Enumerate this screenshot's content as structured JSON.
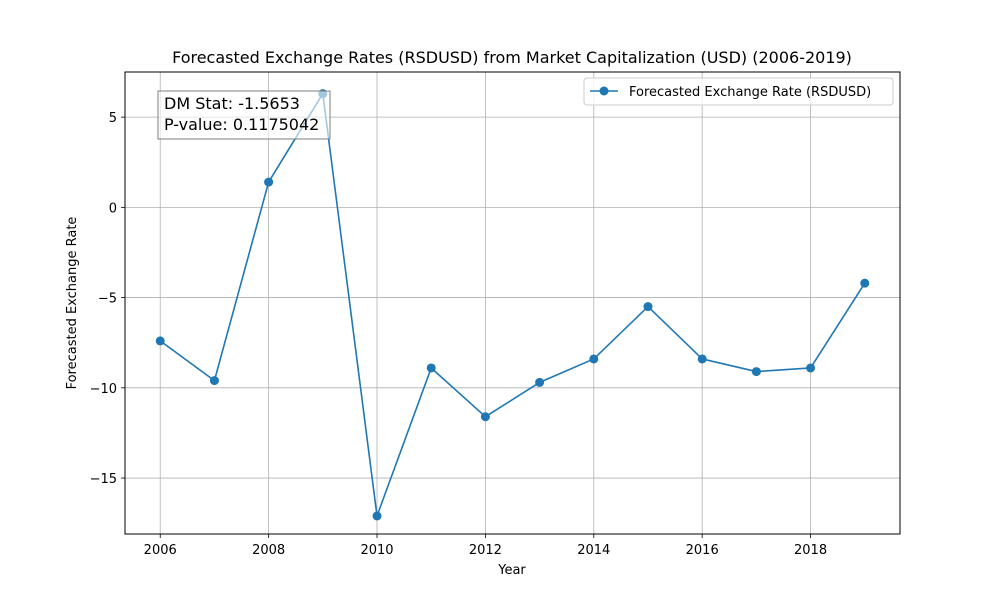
{
  "chart_data": {
    "type": "line",
    "title": "Forecasted Exchange Rates (RSDUSD) from Market Capitalization (USD) (2006-2019)",
    "xlabel": "Year",
    "ylabel": "Forecasted Exchange Rate",
    "xlim": [
      2005.35,
      2019.65
    ],
    "ylim": [
      -18.1,
      7.5
    ],
    "xticks": [
      2006,
      2008,
      2010,
      2012,
      2014,
      2016,
      2018
    ],
    "yticks": [
      -15,
      -10,
      -5,
      0,
      5
    ],
    "xtick_labels": [
      "2006",
      "2008",
      "2010",
      "2012",
      "2014",
      "2016",
      "2018"
    ],
    "ytick_labels": [
      "−15",
      "−10",
      "−5",
      "0",
      "5"
    ],
    "grid": true,
    "legend_position": "top-right",
    "series": [
      {
        "name": "Forecasted Exchange Rate (RSDUSD)",
        "color": "#1f77b4",
        "marker": "circle",
        "x": [
          2006,
          2007,
          2008,
          2009,
          2010,
          2011,
          2012,
          2013,
          2014,
          2015,
          2016,
          2017,
          2018,
          2019
        ],
        "y": [
          -7.4,
          -9.6,
          1.4,
          6.3,
          -17.1,
          -8.9,
          -11.6,
          -9.7,
          -8.4,
          -5.5,
          -8.4,
          -9.1,
          -8.9,
          -4.2
        ]
      }
    ],
    "annotation": {
      "lines": [
        "DM Stat: -1.5653",
        "P-value: 0.1175042"
      ],
      "position": "top-left"
    }
  }
}
